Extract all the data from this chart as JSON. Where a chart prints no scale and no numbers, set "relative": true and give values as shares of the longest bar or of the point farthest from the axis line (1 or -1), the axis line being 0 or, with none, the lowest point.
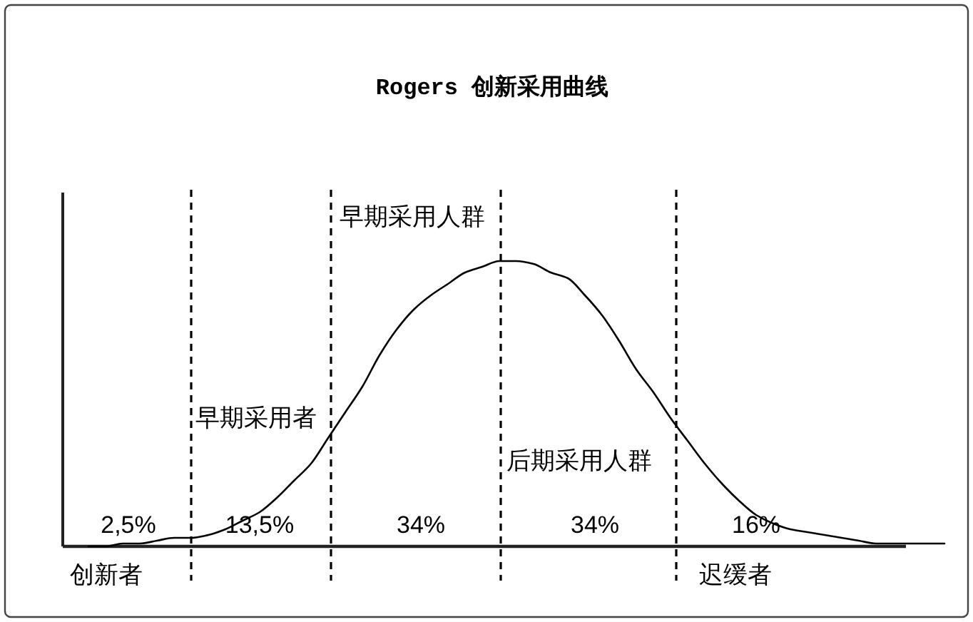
{
  "chart_data": {
    "type": "line",
    "title": "Rogers 创新采用曲线",
    "relative": true,
    "grid": "x",
    "categories": [
      null,
      null,
      null,
      null,
      null,
      null,
      null,
      null,
      null,
      null,
      null,
      null,
      null,
      null,
      null,
      null,
      null,
      null,
      null,
      null,
      null,
      null,
      null,
      null,
      null,
      null,
      null,
      null,
      null,
      null,
      null,
      null,
      null,
      null,
      null,
      null,
      null,
      null,
      null,
      null,
      null,
      null,
      null,
      null,
      null,
      null,
      null,
      null,
      null,
      null,
      null
    ],
    "series": [
      {
        "color": "#000000",
        "values": [
          0,
          0,
          0.01,
          0.01,
          0.02,
          0.03,
          0.03,
          0.04,
          0.06,
          0.09,
          0.12,
          0.17,
          0.23,
          0.29,
          0.38,
          0.47,
          0.56,
          0.67,
          0.76,
          0.83,
          0.88,
          0.92,
          0.96,
          0.98,
          1,
          1,
          0.99,
          0.96,
          0.94,
          0.88,
          0.81,
          0.72,
          0.62,
          0.54,
          0.45,
          0.37,
          0.29,
          0.22,
          0.16,
          0.11,
          0.08,
          0.06,
          0.05,
          0.04,
          0.03,
          0.02,
          0.01,
          0.01,
          0.01,
          0.01,
          0.01
        ]
      }
    ],
    "annotations": [
      "早期采用人群",
      "早期采用者",
      "后期采用人群",
      "2,5%",
      "13,5%",
      "34%",
      "34%",
      "16%",
      "创新者",
      "迟缓者"
    ]
  }
}
